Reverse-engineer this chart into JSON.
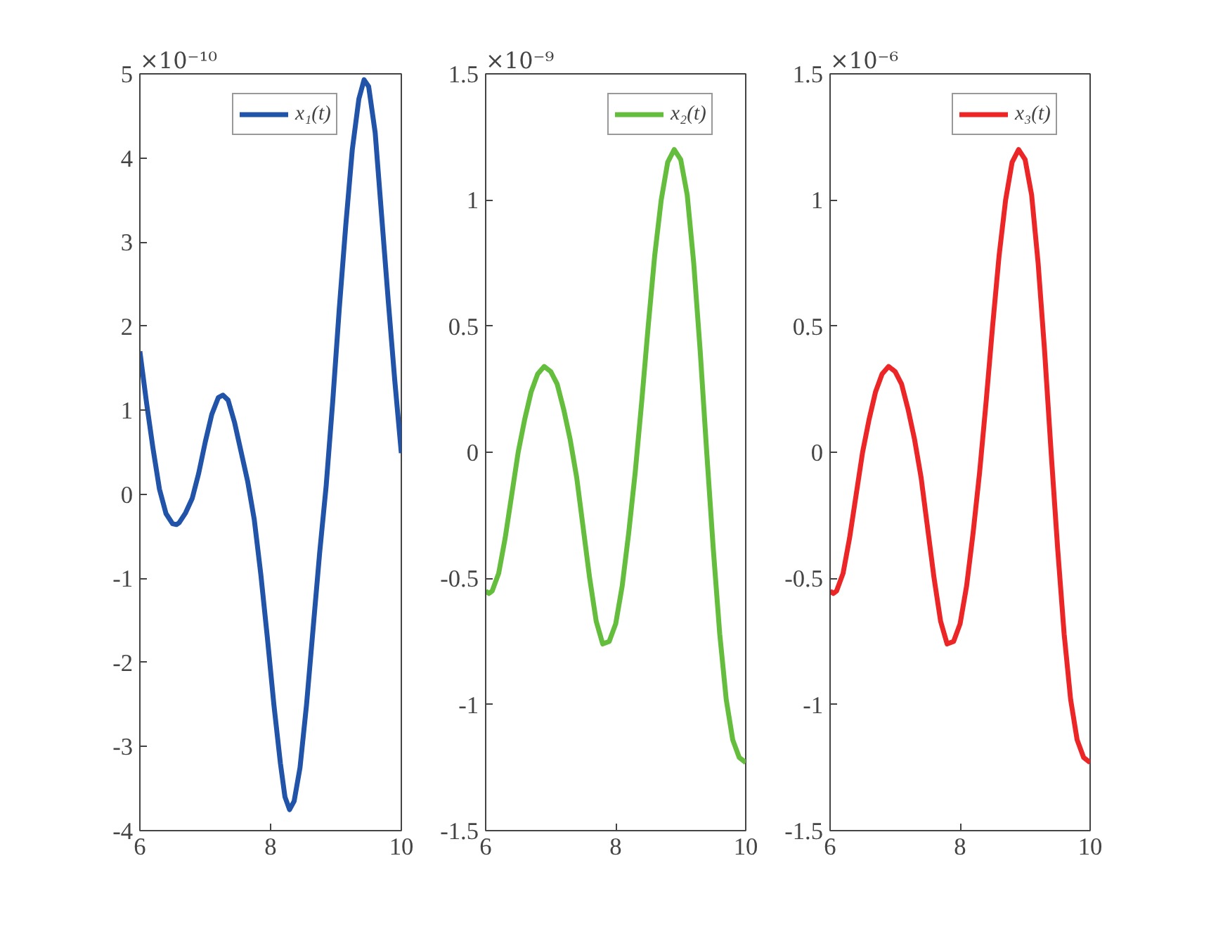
{
  "chart_data": [
    {
      "type": "line",
      "annotations": [
        "×10⁻¹⁰"
      ],
      "legend": "top right",
      "grid": false,
      "line_style": "solid",
      "xlim": [
        6,
        10
      ],
      "xticks": [
        6,
        8,
        10
      ],
      "ylim": [
        -4,
        5
      ],
      "yticks": [
        -4,
        -3,
        -2,
        -1,
        0,
        1,
        2,
        3,
        4,
        5
      ],
      "series": [
        {
          "name": "x₁(t)",
          "color": "#2153a8",
          "x": [
            6.0,
            6.1,
            6.2,
            6.3,
            6.4,
            6.5,
            6.56,
            6.6,
            6.7,
            6.8,
            6.9,
            7.0,
            7.1,
            7.2,
            7.27,
            7.35,
            7.45,
            7.55,
            7.65,
            7.75,
            7.85,
            7.95,
            8.05,
            8.15,
            8.22,
            8.29,
            8.36,
            8.45,
            8.55,
            8.65,
            8.75,
            8.85,
            8.95,
            9.05,
            9.15,
            9.25,
            9.35,
            9.43,
            9.5,
            9.6,
            9.7,
            9.8,
            9.9,
            10.0
          ],
          "values": [
            1.7,
            1.1,
            0.55,
            0.06,
            -0.23,
            -0.35,
            -0.36,
            -0.34,
            -0.22,
            -0.05,
            0.25,
            0.62,
            0.95,
            1.15,
            1.18,
            1.12,
            0.85,
            0.5,
            0.15,
            -0.3,
            -0.95,
            -1.7,
            -2.5,
            -3.2,
            -3.6,
            -3.75,
            -3.65,
            -3.25,
            -2.5,
            -1.6,
            -0.7,
            0.1,
            1.1,
            2.2,
            3.2,
            4.1,
            4.7,
            4.93,
            4.85,
            4.3,
            3.3,
            2.3,
            1.35,
            0.49
          ]
        }
      ]
    },
    {
      "type": "line",
      "annotations": [
        "×10⁻⁹"
      ],
      "legend": "top right",
      "grid": false,
      "line_style": "solid",
      "xlim": [
        6,
        10
      ],
      "xticks": [
        6,
        8,
        10
      ],
      "ylim": [
        -1.5,
        1.5
      ],
      "yticks": [
        -1.5,
        -1,
        -0.5,
        0,
        0.5,
        1,
        1.5
      ],
      "series": [
        {
          "name": "x₂(t)",
          "color": "#64bd3c",
          "x": [
            6.0,
            6.05,
            6.1,
            6.2,
            6.3,
            6.4,
            6.5,
            6.6,
            6.7,
            6.8,
            6.9,
            7.0,
            7.1,
            7.2,
            7.3,
            7.4,
            7.5,
            7.6,
            7.7,
            7.8,
            7.9,
            8.0,
            8.1,
            8.2,
            8.3,
            8.4,
            8.5,
            8.6,
            8.7,
            8.8,
            8.9,
            9.0,
            9.1,
            9.2,
            9.3,
            9.4,
            9.5,
            9.6,
            9.7,
            9.8,
            9.9,
            10.0
          ],
          "values": [
            -0.55,
            -0.56,
            -0.55,
            -0.48,
            -0.34,
            -0.17,
            0.0,
            0.13,
            0.24,
            0.31,
            0.34,
            0.32,
            0.27,
            0.17,
            0.05,
            -0.1,
            -0.3,
            -0.5,
            -0.67,
            -0.76,
            -0.75,
            -0.68,
            -0.53,
            -0.32,
            -0.08,
            0.2,
            0.5,
            0.78,
            1.0,
            1.15,
            1.2,
            1.16,
            1.02,
            0.75,
            0.4,
            0.0,
            -0.38,
            -0.72,
            -0.98,
            -1.14,
            -1.21,
            -1.23
          ]
        }
      ]
    },
    {
      "type": "line",
      "annotations": [
        "×10⁻⁶"
      ],
      "legend": "top right",
      "grid": false,
      "line_style": "solid",
      "xlim": [
        6,
        10
      ],
      "xticks": [
        6,
        8,
        10
      ],
      "ylim": [
        -1.5,
        1.5
      ],
      "yticks": [
        -1.5,
        -1,
        -0.5,
        0,
        0.5,
        1,
        1.5
      ],
      "series": [
        {
          "name": "x₃(t)",
          "color": "#ec2526",
          "x": [
            6.0,
            6.05,
            6.1,
            6.2,
            6.3,
            6.4,
            6.5,
            6.6,
            6.7,
            6.8,
            6.9,
            7.0,
            7.1,
            7.2,
            7.3,
            7.4,
            7.5,
            7.6,
            7.7,
            7.8,
            7.9,
            8.0,
            8.1,
            8.2,
            8.3,
            8.4,
            8.5,
            8.6,
            8.7,
            8.8,
            8.9,
            9.0,
            9.1,
            9.2,
            9.3,
            9.4,
            9.5,
            9.6,
            9.7,
            9.8,
            9.9,
            10.0
          ],
          "values": [
            -0.55,
            -0.56,
            -0.55,
            -0.48,
            -0.34,
            -0.17,
            0.0,
            0.13,
            0.24,
            0.31,
            0.34,
            0.32,
            0.27,
            0.17,
            0.05,
            -0.1,
            -0.3,
            -0.5,
            -0.67,
            -0.76,
            -0.75,
            -0.68,
            -0.53,
            -0.32,
            -0.08,
            0.2,
            0.5,
            0.78,
            1.0,
            1.15,
            1.2,
            1.16,
            1.02,
            0.75,
            0.4,
            0.0,
            -0.38,
            -0.72,
            -0.98,
            -1.14,
            -1.21,
            -1.23
          ]
        }
      ]
    }
  ]
}
